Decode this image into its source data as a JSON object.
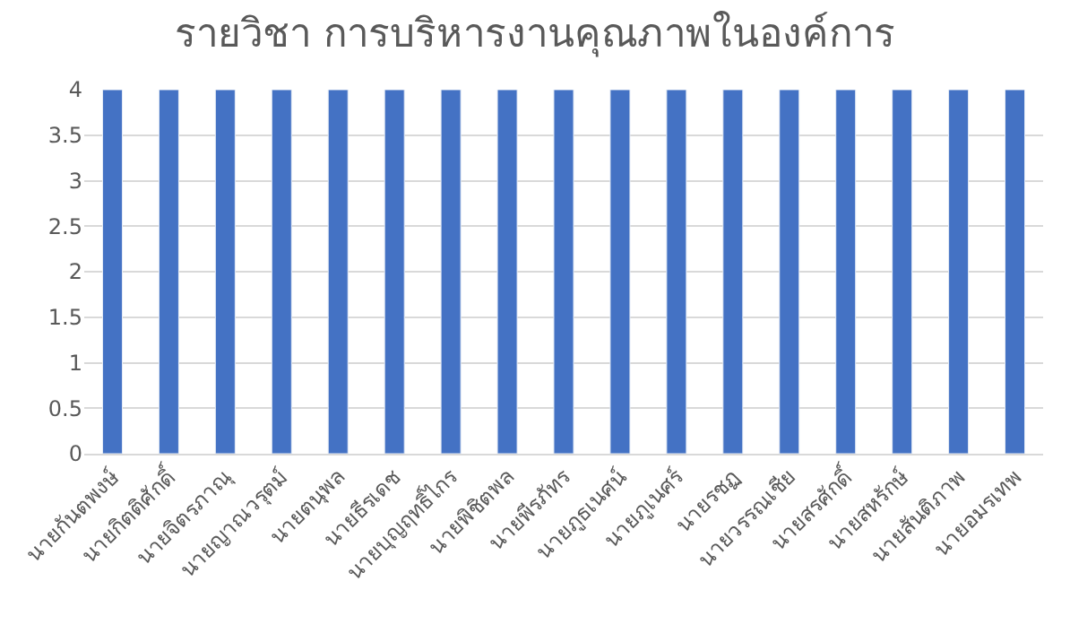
{
  "chart_data": {
    "type": "bar",
    "title": "รายวิชา การบริหารงานคุณภาพในองค์การ",
    "categories": [
      "นายกันตพงษ์",
      "นายกิตติศักดิ์",
      "นายจิตรภาณุ",
      "นายญาณวรุตม์",
      "นายตนุพล",
      "นายธีรเดช",
      "นายบุญฤทธิ์ไกร",
      "นายพิชิตพล",
      "นายพีรภัทร",
      "นายภูธเนศน์",
      "นายภูเนศร์",
      "นายรชฏ",
      "นายวรรณเชีย",
      "นายสรศักดิ์",
      "นายสหรักษ์",
      "นายสันติภาพ",
      "นายอมรเทพ"
    ],
    "values": [
      4,
      4,
      4,
      4,
      4,
      4,
      4,
      4,
      4,
      4,
      4,
      4,
      4,
      4,
      4,
      4,
      4
    ],
    "color": "#4472c4",
    "ylim": [
      0,
      4
    ],
    "yticks": [
      0,
      0.5,
      1,
      1.5,
      2,
      2.5,
      3,
      3.5,
      4
    ],
    "grid": "y",
    "legend": false
  }
}
